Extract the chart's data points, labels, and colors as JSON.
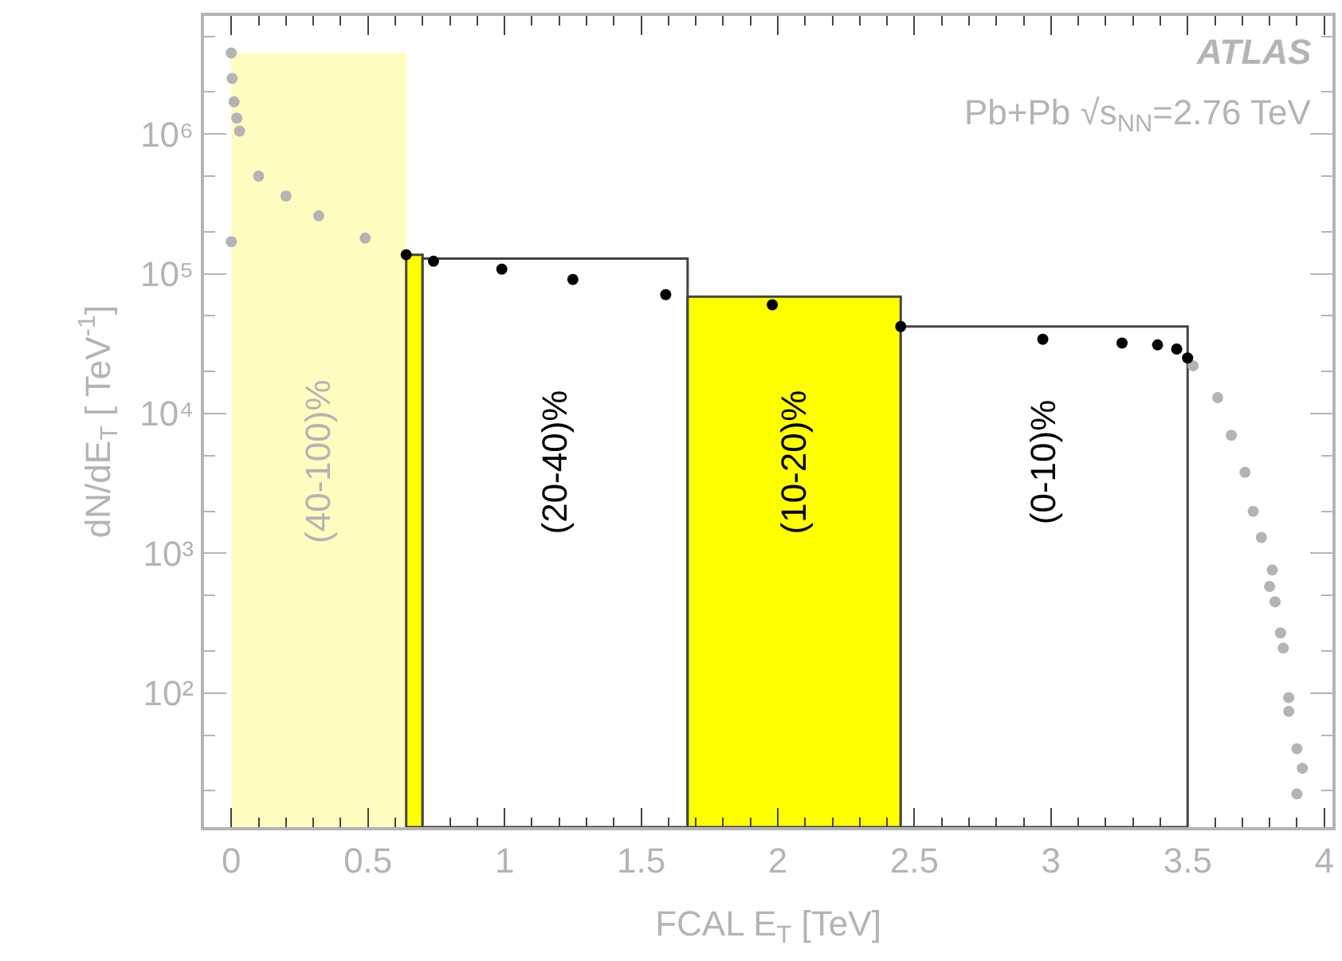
{
  "chart_data": {
    "type": "scatter",
    "xlabel": "FCAL E$_{T}$ [TeV]",
    "ylabel": "dN/dE$_{T}$ [ TeV$^{-1}$]",
    "annotations": [
      "ATLAS",
      "Pb+Pb √s$_{NN}$=2.76 TeV"
    ],
    "series": [
      {
        "color": "#b4b4b4",
        "x": [
          0,
          0,
          0.003,
          0.01,
          0.02,
          0.03,
          0.1,
          0.2,
          0.32,
          0.49,
          3.52,
          3.61,
          3.66,
          3.71,
          3.74,
          3.77,
          3.8,
          3.81,
          3.82,
          3.84,
          3.85,
          3.87,
          3.87,
          3.9,
          3.9,
          3.92
        ],
        "values": [
          170000,
          3800000,
          2500000,
          1700000,
          1300000,
          1050000,
          500000,
          360000,
          260000,
          180000,
          22000,
          13000,
          7000,
          3800,
          2000,
          1300,
          580,
          760,
          450,
          270,
          210,
          93,
          74,
          40,
          19,
          29
        ]
      },
      {
        "color": "#000000",
        "x": [
          0.64,
          0.74,
          0.99,
          1.25,
          1.59,
          1.98,
          2.45,
          2.97,
          3.26,
          3.39,
          3.46,
          3.5
        ],
        "values": [
          137000,
          123000,
          108000,
          91000,
          71000,
          60000,
          42000,
          34000,
          32000,
          31000,
          29000,
          25000
        ]
      }
    ],
    "bands": [
      {
        "axis": "x",
        "from": 0,
        "to": 0.64,
        "label": "(40-100)%",
        "color": "#fffcc0"
      },
      {
        "axis": "x",
        "from": 0.64,
        "to": 0.7,
        "color": "#ffff00"
      },
      {
        "axis": "x",
        "from": 0.7,
        "to": 1.67,
        "label": "(20-40)%",
        "color": "#ffffff"
      },
      {
        "axis": "x",
        "from": 1.67,
        "to": 2.45,
        "label": "(10-20)%",
        "color": "#ffff00"
      },
      {
        "axis": "x",
        "from": 2.45,
        "to": 3.5,
        "label": "(0-10)%",
        "color": "#ffffff"
      }
    ],
    "log": true,
    "xlim": [
      -0.1,
      4.03
    ],
    "xticks": [
      0,
      0.5,
      1,
      1.5,
      2,
      2.5,
      3,
      3.5,
      4
    ],
    "ylim": [
      11,
      7000000
    ],
    "yticks": [
      {
        "value": 100,
        "label": "10²"
      },
      {
        "value": 1000,
        "label": "10³"
      },
      {
        "value": 10000,
        "label": "10⁴"
      },
      {
        "value": 100000,
        "label": "10⁵"
      },
      {
        "value": 1000000,
        "label": "10⁶"
      }
    ],
    "grid": false,
    "marker": "circle"
  }
}
